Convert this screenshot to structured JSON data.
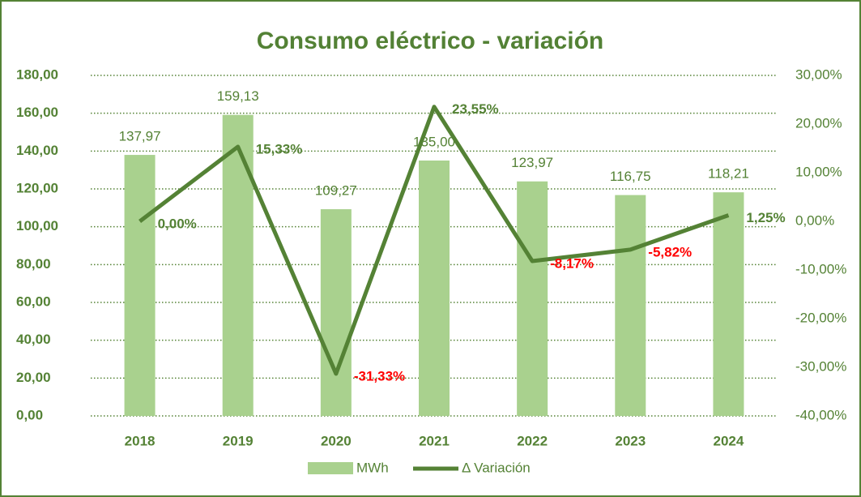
{
  "chart_data": {
    "type": "bar_line",
    "title": "Consumo eléctrico - variación",
    "categories": [
      "2018",
      "2019",
      "2020",
      "2021",
      "2022",
      "2023",
      "2024"
    ],
    "series": [
      {
        "name": "MWh",
        "type": "bar",
        "color": "#a9d18e",
        "values": [
          137.97,
          159.13,
          109.27,
          135.0,
          123.97,
          116.75,
          118.21
        ],
        "value_labels": [
          "137,97",
          "159,13",
          "109,27",
          "135,00",
          "123,97",
          "116,75",
          "118,21"
        ]
      },
      {
        "name": "Δ Variación",
        "type": "line",
        "axis": "y2",
        "color": "#548235",
        "values": [
          0,
          15.33,
          -31.33,
          23.55,
          -8.17,
          -5.82,
          1.25
        ],
        "value_labels": [
          "0,00%",
          "15,33%",
          "-31,33%",
          "23,55%",
          "-8,17%",
          "-5,82%",
          "1,25%"
        ]
      }
    ],
    "ylim": [
      0,
      180
    ],
    "yticks": [
      {
        "value": 0,
        "label": "0,00"
      },
      {
        "value": 20,
        "label": "20,00"
      },
      {
        "value": 40,
        "label": "40,00"
      },
      {
        "value": 60,
        "label": "60,00"
      },
      {
        "value": 80,
        "label": "80,00"
      },
      {
        "value": 100,
        "label": "100,00"
      },
      {
        "value": 120,
        "label": "120,00"
      },
      {
        "value": 140,
        "label": "140,00"
      },
      {
        "value": 160,
        "label": "160,00"
      },
      {
        "value": 180,
        "label": "180,00"
      }
    ],
    "y2lim": [
      -40,
      30
    ],
    "y2ticks": [
      {
        "value": -40,
        "label": "-40,00%"
      },
      {
        "value": -30,
        "label": "-30,00%"
      },
      {
        "value": -20,
        "label": "-20,00%"
      },
      {
        "value": -10,
        "label": "-10,00%"
      },
      {
        "value": 0,
        "label": "0,00%"
      },
      {
        "value": 10,
        "label": "10,00%"
      },
      {
        "value": 20,
        "label": "20,00%"
      },
      {
        "value": 30,
        "label": "30,00%"
      }
    ],
    "grid": true,
    "legend": "bottom"
  }
}
